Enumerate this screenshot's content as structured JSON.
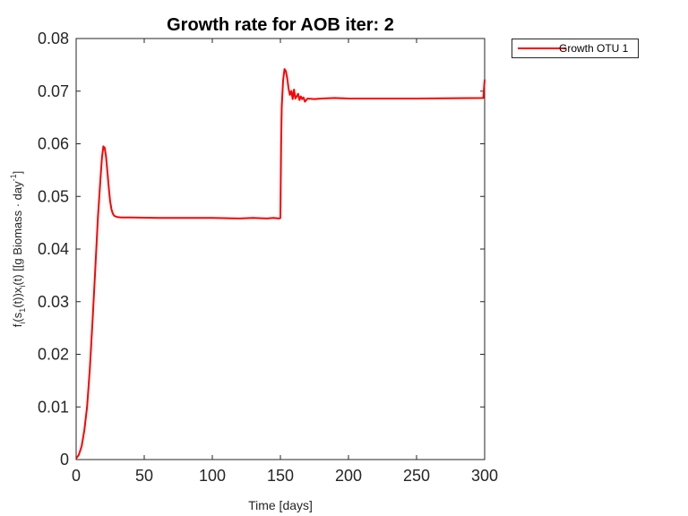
{
  "chart_data": {
    "type": "line",
    "title": "Growth rate for AOB iter: 2",
    "xlabel": "Time [days]",
    "ylabel_parts": {
      "f": "f",
      "i1": "i",
      "s": "(s",
      "sub1": "1",
      "t1": "(t))x",
      "i2": "i",
      "t2": "(t) [[g Biomass · day",
      "sup": "-1",
      "end": "]"
    },
    "xlim": [
      0,
      300
    ],
    "ylim": [
      0,
      0.08
    ],
    "xticks": [
      0,
      50,
      100,
      150,
      200,
      250,
      300
    ],
    "yticks": [
      0,
      0.01,
      0.02,
      0.03,
      0.04,
      0.05,
      0.06,
      0.07,
      0.08
    ],
    "xtick_labels": [
      "0",
      "50",
      "100",
      "150",
      "200",
      "250",
      "300"
    ],
    "ytick_labels": [
      "0",
      "0.01",
      "0.02",
      "0.03",
      "0.04",
      "0.05",
      "0.06",
      "0.07",
      "0.08"
    ],
    "grid": false,
    "legend_position": "outside-top-right",
    "series": [
      {
        "name": "Growth OTU 1",
        "color": "#ff0000",
        "x": [
          0,
          2,
          4,
          6,
          8,
          10,
          12,
          14,
          16,
          18,
          19,
          20,
          21,
          22,
          23,
          24,
          25,
          26,
          27,
          28,
          30,
          33,
          40,
          60,
          80,
          100,
          120,
          130,
          140,
          145,
          149,
          150,
          150.5,
          151,
          152,
          153,
          154,
          155,
          156,
          157,
          158,
          159,
          160,
          161,
          162,
          163,
          164,
          165,
          166,
          167,
          168,
          170,
          175,
          180,
          190,
          200,
          250,
          299,
          300
        ],
        "y": [
          0.0002,
          0.0009,
          0.0025,
          0.0055,
          0.01,
          0.017,
          0.026,
          0.036,
          0.046,
          0.054,
          0.0575,
          0.0595,
          0.0592,
          0.0575,
          0.0545,
          0.0515,
          0.049,
          0.0475,
          0.0467,
          0.0463,
          0.0461,
          0.046,
          0.046,
          0.0459,
          0.0459,
          0.0459,
          0.0458,
          0.0459,
          0.0458,
          0.0459,
          0.0458,
          0.0459,
          0.06,
          0.067,
          0.072,
          0.0742,
          0.0738,
          0.0725,
          0.0705,
          0.0693,
          0.07,
          0.0685,
          0.0703,
          0.0686,
          0.069,
          0.0695,
          0.0683,
          0.069,
          0.0685,
          0.0688,
          0.068,
          0.0686,
          0.0685,
          0.0686,
          0.0687,
          0.0686,
          0.0686,
          0.0687,
          0.0722
        ]
      }
    ]
  }
}
